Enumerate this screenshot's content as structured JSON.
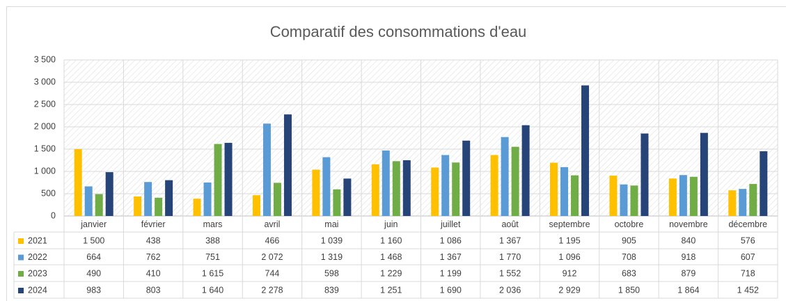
{
  "chart_data": {
    "type": "bar",
    "title": "Comparatif des consommations d'eau",
    "categories": [
      "janvier",
      "février",
      "mars",
      "avril",
      "mai",
      "juin",
      "juillet",
      "août",
      "septembre",
      "octobre",
      "novembre",
      "décembre"
    ],
    "series": [
      {
        "name": "2021",
        "color": "#ffc000",
        "values": [
          1500,
          438,
          388,
          466,
          1039,
          1160,
          1086,
          1367,
          1195,
          905,
          840,
          576
        ],
        "value_labels": [
          "1 500",
          "438",
          "388",
          "466",
          "1 039",
          "1 160",
          "1 086",
          "1 367",
          "1 195",
          "905",
          "840",
          "576"
        ]
      },
      {
        "name": "2022",
        "color": "#5b9bd5",
        "values": [
          664,
          762,
          751,
          2072,
          1319,
          1468,
          1367,
          1770,
          1096,
          708,
          918,
          607
        ],
        "value_labels": [
          "664",
          "762",
          "751",
          "2 072",
          "1 319",
          "1 468",
          "1 367",
          "1 770",
          "1 096",
          "708",
          "918",
          "607"
        ]
      },
      {
        "name": "2023",
        "color": "#70ad47",
        "values": [
          490,
          410,
          1615,
          744,
          598,
          1229,
          1199,
          1552,
          912,
          683,
          879,
          718
        ],
        "value_labels": [
          "490",
          "410",
          "1 615",
          "744",
          "598",
          "1 229",
          "1 199",
          "1 552",
          "912",
          "683",
          "879",
          "718"
        ]
      },
      {
        "name": "2024",
        "color": "#264478",
        "values": [
          983,
          803,
          1640,
          2278,
          839,
          1251,
          1690,
          2036,
          2929,
          1850,
          1864,
          1452
        ],
        "value_labels": [
          "983",
          "803",
          "1 640",
          "2 278",
          "839",
          "1 251",
          "1 690",
          "2 036",
          "2 929",
          "1 850",
          "1 864",
          "1 452"
        ]
      }
    ],
    "ylim": [
      0,
      3500
    ],
    "yticks": [
      0,
      500,
      {
        "value": 1000,
        "label": "1 000"
      },
      {
        "value": 1500,
        "label": "1 500"
      },
      {
        "value": 2000,
        "label": "2 000"
      },
      {
        "value": 2500,
        "label": "2 500"
      },
      {
        "value": 3000,
        "label": "3 000"
      },
      {
        "value": 3500,
        "label": "3 500"
      }
    ],
    "grid": true
  }
}
